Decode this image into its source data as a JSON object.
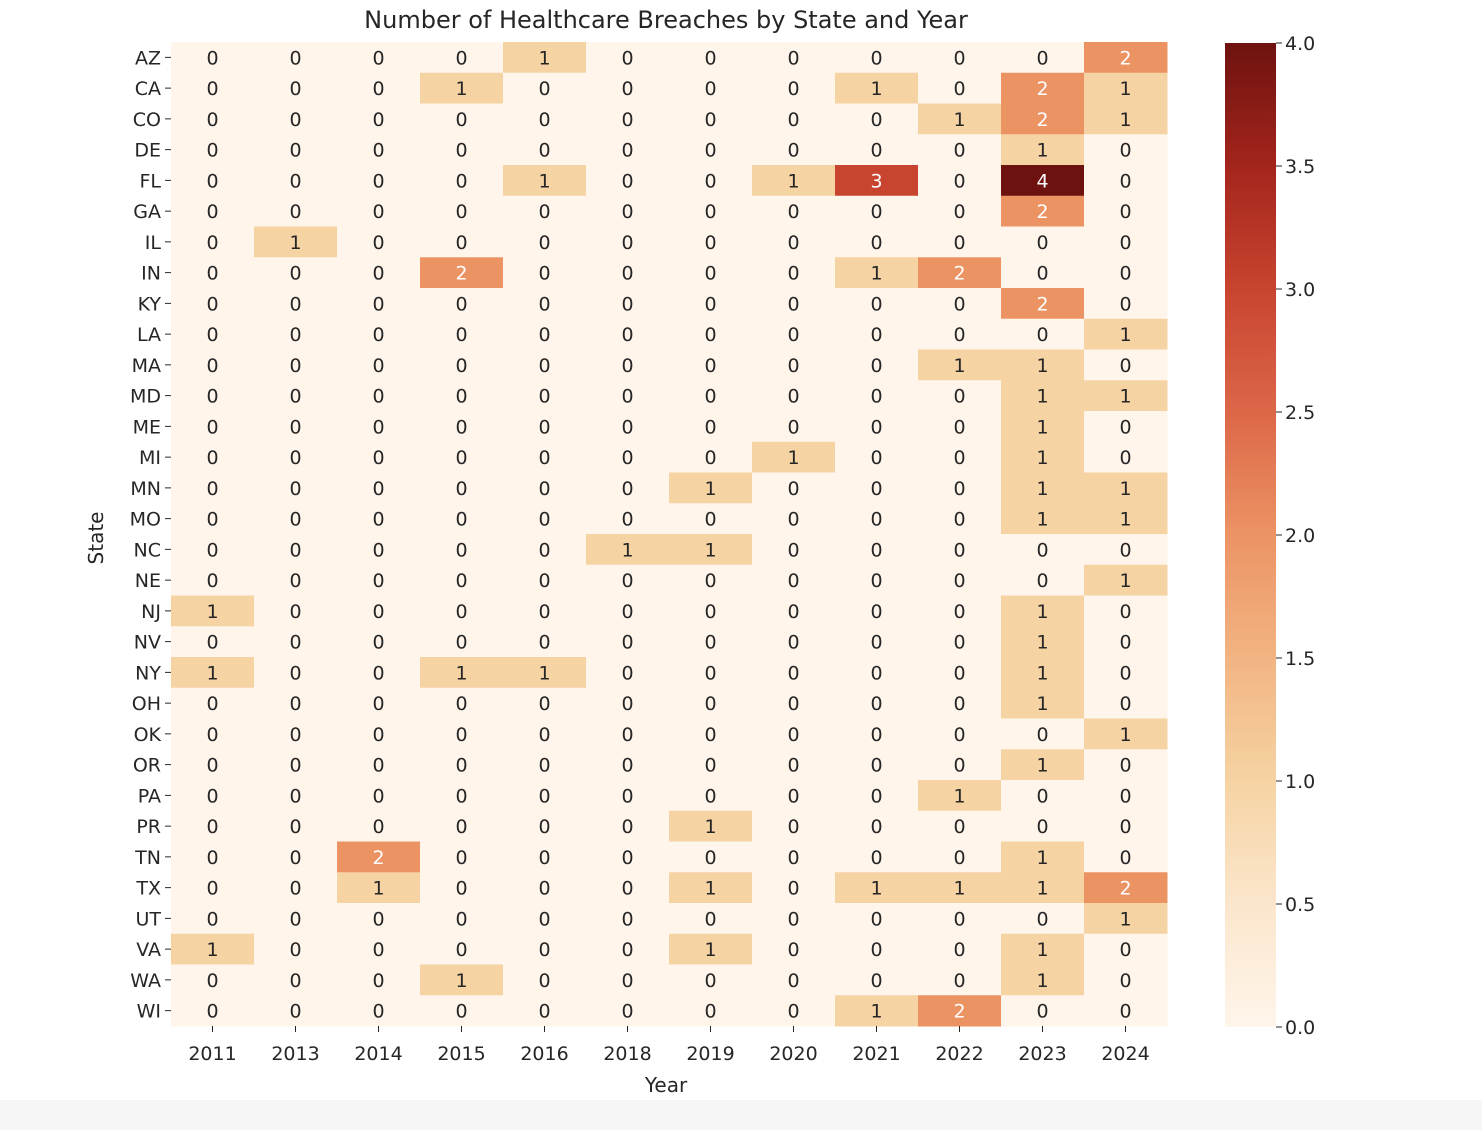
{
  "chart_data": {
    "type": "heatmap",
    "title": "Number of Healthcare Breaches by State and Year",
    "xlabel": "Year",
    "ylabel": "State",
    "x_categories": [
      "2011",
      "2013",
      "2014",
      "2015",
      "2016",
      "2018",
      "2019",
      "2020",
      "2021",
      "2022",
      "2023",
      "2024"
    ],
    "y_categories": [
      "AZ",
      "CA",
      "CO",
      "DE",
      "FL",
      "GA",
      "IL",
      "IN",
      "KY",
      "LA",
      "MA",
      "MD",
      "ME",
      "MI",
      "MN",
      "MO",
      "NC",
      "NE",
      "NJ",
      "NV",
      "NY",
      "OH",
      "OK",
      "OR",
      "PA",
      "PR",
      "TN",
      "TX",
      "UT",
      "VA",
      "WA",
      "WI"
    ],
    "values": [
      [
        0,
        0,
        0,
        0,
        1,
        0,
        0,
        0,
        0,
        0,
        0,
        2
      ],
      [
        0,
        0,
        0,
        1,
        0,
        0,
        0,
        0,
        1,
        0,
        2,
        1
      ],
      [
        0,
        0,
        0,
        0,
        0,
        0,
        0,
        0,
        0,
        1,
        2,
        1
      ],
      [
        0,
        0,
        0,
        0,
        0,
        0,
        0,
        0,
        0,
        0,
        1,
        0
      ],
      [
        0,
        0,
        0,
        0,
        1,
        0,
        0,
        1,
        3,
        0,
        4,
        0
      ],
      [
        0,
        0,
        0,
        0,
        0,
        0,
        0,
        0,
        0,
        0,
        2,
        0
      ],
      [
        0,
        1,
        0,
        0,
        0,
        0,
        0,
        0,
        0,
        0,
        0,
        0
      ],
      [
        0,
        0,
        0,
        2,
        0,
        0,
        0,
        0,
        1,
        2,
        0,
        0
      ],
      [
        0,
        0,
        0,
        0,
        0,
        0,
        0,
        0,
        0,
        0,
        2,
        0
      ],
      [
        0,
        0,
        0,
        0,
        0,
        0,
        0,
        0,
        0,
        0,
        0,
        1
      ],
      [
        0,
        0,
        0,
        0,
        0,
        0,
        0,
        0,
        0,
        1,
        1,
        0
      ],
      [
        0,
        0,
        0,
        0,
        0,
        0,
        0,
        0,
        0,
        0,
        1,
        1
      ],
      [
        0,
        0,
        0,
        0,
        0,
        0,
        0,
        0,
        0,
        0,
        1,
        0
      ],
      [
        0,
        0,
        0,
        0,
        0,
        0,
        0,
        1,
        0,
        0,
        1,
        0
      ],
      [
        0,
        0,
        0,
        0,
        0,
        0,
        1,
        0,
        0,
        0,
        1,
        1
      ],
      [
        0,
        0,
        0,
        0,
        0,
        0,
        0,
        0,
        0,
        0,
        1,
        1
      ],
      [
        0,
        0,
        0,
        0,
        0,
        1,
        1,
        0,
        0,
        0,
        0,
        0
      ],
      [
        0,
        0,
        0,
        0,
        0,
        0,
        0,
        0,
        0,
        0,
        0,
        1
      ],
      [
        1,
        0,
        0,
        0,
        0,
        0,
        0,
        0,
        0,
        0,
        1,
        0
      ],
      [
        0,
        0,
        0,
        0,
        0,
        0,
        0,
        0,
        0,
        0,
        1,
        0
      ],
      [
        1,
        0,
        0,
        1,
        1,
        0,
        0,
        0,
        0,
        0,
        1,
        0
      ],
      [
        0,
        0,
        0,
        0,
        0,
        0,
        0,
        0,
        0,
        0,
        1,
        0
      ],
      [
        0,
        0,
        0,
        0,
        0,
        0,
        0,
        0,
        0,
        0,
        0,
        1
      ],
      [
        0,
        0,
        0,
        0,
        0,
        0,
        0,
        0,
        0,
        0,
        1,
        0
      ],
      [
        0,
        0,
        0,
        0,
        0,
        0,
        0,
        0,
        0,
        1,
        0,
        0
      ],
      [
        0,
        0,
        0,
        0,
        0,
        0,
        1,
        0,
        0,
        0,
        0,
        0
      ],
      [
        0,
        0,
        2,
        0,
        0,
        0,
        0,
        0,
        0,
        0,
        1,
        0
      ],
      [
        0,
        0,
        1,
        0,
        0,
        0,
        1,
        0,
        1,
        1,
        1,
        2
      ],
      [
        0,
        0,
        0,
        0,
        0,
        0,
        0,
        0,
        0,
        0,
        0,
        1
      ],
      [
        1,
        0,
        0,
        0,
        0,
        0,
        1,
        0,
        0,
        0,
        1,
        0
      ],
      [
        0,
        0,
        0,
        1,
        0,
        0,
        0,
        0,
        0,
        0,
        1,
        0
      ],
      [
        0,
        0,
        0,
        0,
        0,
        0,
        0,
        0,
        1,
        2,
        0,
        0
      ]
    ],
    "annotations": true,
    "colorbar": {
      "colormap": "Oranges-to-dark-red",
      "vmin": 0,
      "vmax": 4,
      "ticks": [
        0.0,
        0.5,
        1.0,
        1.5,
        2.0,
        2.5,
        3.0,
        3.5,
        4.0
      ],
      "tick_labels": [
        "0.0",
        "0.5",
        "1.0",
        "1.5",
        "2.0",
        "2.5",
        "3.0",
        "3.5",
        "4.0"
      ]
    },
    "colors": {
      "v0": "#fff5eb",
      "v1": "#f6d3a3",
      "v2": "#ec9364",
      "v3": "#c8442f",
      "v4": "#6e1210",
      "text_dark": "#262626",
      "text_light": "#ffffff"
    }
  }
}
